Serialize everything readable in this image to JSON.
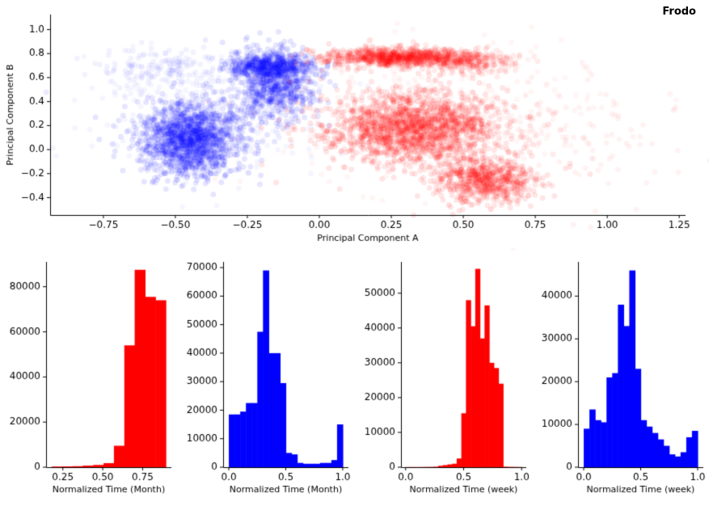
{
  "title": "Frodo",
  "colors": {
    "blue": "#0000ff",
    "red": "#ff0000",
    "axis": "#000000"
  },
  "chart_data": [
    {
      "type": "scatter",
      "title": "Frodo",
      "xlabel": "Principal Component A",
      "ylabel": "Principal Component B",
      "xlim": [
        -0.935,
        1.272
      ],
      "ylim": [
        -0.545,
        1.125
      ],
      "xticks": [
        -0.75,
        -0.5,
        -0.25,
        0.0,
        0.25,
        0.5,
        0.75,
        1.0,
        1.25
      ],
      "xtick_labels": [
        "−0.75",
        "−0.50",
        "−0.25",
        "0.00",
        "0.25",
        "0.50",
        "0.75",
        "1.00",
        "1.25"
      ],
      "yticks": [
        -0.4,
        -0.2,
        0.0,
        0.2,
        0.4,
        0.6,
        0.8,
        1.0
      ],
      "ytick_labels": [
        "−0.4",
        "−0.2",
        "0.0",
        "0.2",
        "0.4",
        "0.6",
        "0.8",
        "1.0"
      ],
      "grid": false,
      "legend": "none",
      "marker_radius_px": 3.5,
      "series": [
        {
          "name": "blue-class",
          "color": "#0000ff",
          "clusters": [
            {
              "n": 1600,
              "cx": -0.45,
              "cy": 0.08,
              "sx": 0.085,
              "sy": 0.15,
              "alpha": 0.1
            },
            {
              "n": 800,
              "cx": -0.16,
              "cy": 0.55,
              "sx": 0.07,
              "sy": 0.14,
              "alpha": 0.1
            },
            {
              "n": 500,
              "cx": -0.17,
              "cy": 0.7,
              "sx": 0.08,
              "sy": 0.05,
              "alpha": 0.1
            },
            {
              "n": 350,
              "cx": -0.4,
              "cy": 0.3,
              "sx": 0.2,
              "sy": 0.25,
              "alpha": 0.04
            },
            {
              "n": 150,
              "cx": -0.55,
              "cy": 0.68,
              "sx": 0.1,
              "sy": 0.08,
              "alpha": 0.05
            }
          ]
        },
        {
          "name": "red-class",
          "color": "#ff0000",
          "clusters": [
            {
              "n": 900,
              "cx": 0.28,
              "cy": 0.77,
              "sx": 0.13,
              "sy": 0.04,
              "alpha": 0.1
            },
            {
              "n": 250,
              "cx": 0.52,
              "cy": 0.73,
              "sx": 0.08,
              "sy": 0.05,
              "alpha": 0.08
            },
            {
              "n": 1800,
              "cx": 0.33,
              "cy": 0.18,
              "sx": 0.15,
              "sy": 0.15,
              "alpha": 0.1
            },
            {
              "n": 700,
              "cx": 0.58,
              "cy": -0.25,
              "sx": 0.09,
              "sy": 0.09,
              "alpha": 0.1
            },
            {
              "n": 400,
              "cx": 0.45,
              "cy": 0.3,
              "sx": 0.28,
              "sy": 0.28,
              "alpha": 0.04
            },
            {
              "n": 80,
              "cx": 0.95,
              "cy": 0.15,
              "sx": 0.18,
              "sy": 0.3,
              "alpha": 0.05
            }
          ]
        }
      ]
    },
    {
      "type": "histogram",
      "name": "month-red",
      "color": "#ff0000",
      "xlabel": "Normalized Time (Month)",
      "xlim": [
        0.145,
        0.93
      ],
      "ymax": 91000,
      "xticks": [
        0.25,
        0.5,
        0.75
      ],
      "xtick_labels": [
        "0.25",
        "0.50",
        "0.75"
      ],
      "yticks": [
        0,
        20000,
        40000,
        60000,
        80000
      ],
      "ytick_labels": [
        "0",
        "20000",
        "40000",
        "60000",
        "80000"
      ],
      "bin_start": 0.18,
      "bin_width": 0.065,
      "counts": [
        300,
        350,
        450,
        700,
        1000,
        1800,
        9500,
        54000,
        87500,
        75500,
        74000
      ]
    },
    {
      "type": "histogram",
      "name": "month-blue",
      "color": "#0000ff",
      "xlabel": "Normalized Time (Month)",
      "xlim": [
        -0.05,
        1.05
      ],
      "ymax": 72000,
      "xticks": [
        0.0,
        0.5,
        1.0
      ],
      "xtick_labels": [
        "0.0",
        "0.5",
        "1.0"
      ],
      "yticks": [
        0,
        10000,
        20000,
        30000,
        40000,
        50000,
        60000,
        70000
      ],
      "ytick_labels": [
        "0",
        "10000",
        "20000",
        "30000",
        "40000",
        "50000",
        "60000",
        "70000"
      ],
      "bin_start": 0.0,
      "bin_width": 0.05,
      "counts": [
        18500,
        18500,
        19500,
        22500,
        22500,
        47500,
        69000,
        40000,
        40000,
        29500,
        5000,
        4500,
        1500,
        1200,
        1200,
        1200,
        1500,
        1500,
        2500,
        15000
      ]
    },
    {
      "type": "histogram",
      "name": "week-red",
      "color": "#ff0000",
      "xlabel": "Normalized Time (week)",
      "xlim": [
        -0.04,
        1.04
      ],
      "ymax": 59000,
      "xticks": [
        0.0,
        0.5,
        1.0
      ],
      "xtick_labels": [
        "0.0",
        "0.5",
        "1.0"
      ],
      "yticks": [
        0,
        10000,
        20000,
        30000,
        40000,
        50000
      ],
      "ytick_labels": [
        "0",
        "10000",
        "20000",
        "30000",
        "40000",
        "50000"
      ],
      "bin_start": 0.0,
      "bin_width": 0.04,
      "counts": [
        50,
        50,
        50,
        60,
        80,
        100,
        150,
        400,
        600,
        800,
        1000,
        2500,
        15500,
        48000,
        40500,
        57000,
        37000,
        46500,
        30000,
        28500,
        24000,
        150,
        100,
        80,
        60
      ]
    },
    {
      "type": "histogram",
      "name": "week-blue",
      "color": "#0000ff",
      "xlabel": "Normalized Time (week)",
      "xlim": [
        -0.05,
        1.05
      ],
      "ymax": 48000,
      "xticks": [
        0.0,
        0.5,
        1.0
      ],
      "xtick_labels": [
        "0.0",
        "0.5",
        "1.0"
      ],
      "yticks": [
        0,
        10000,
        20000,
        30000,
        40000
      ],
      "ytick_labels": [
        "0",
        "10000",
        "20000",
        "30000",
        "40000"
      ],
      "bin_start": 0.0,
      "bin_width": 0.05,
      "counts": [
        9000,
        13500,
        11000,
        10500,
        21000,
        22000,
        38000,
        33000,
        46000,
        23000,
        11000,
        9500,
        8000,
        6500,
        5000,
        3000,
        2500,
        3500,
        7000,
        8500
      ]
    }
  ]
}
